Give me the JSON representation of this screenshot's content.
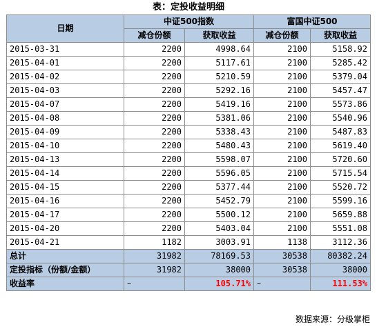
{
  "title": "表：定投收益明细",
  "header": {
    "date_label": "日期",
    "fund_a": "中证500指数",
    "fund_b": "富国中证500",
    "reduce_label": "减仓份额",
    "gain_label": "获取收益"
  },
  "rows": [
    {
      "date": "2015-03-31",
      "a_reduce": "2200",
      "a_gain": "4998.64",
      "b_reduce": "2100",
      "b_gain": "5158.92"
    },
    {
      "date": "2015-04-01",
      "a_reduce": "2200",
      "a_gain": "5117.61",
      "b_reduce": "2100",
      "b_gain": "5285.42"
    },
    {
      "date": "2015-04-02",
      "a_reduce": "2200",
      "a_gain": "5210.59",
      "b_reduce": "2100",
      "b_gain": "5379.04"
    },
    {
      "date": "2015-04-03",
      "a_reduce": "2200",
      "a_gain": "5292.16",
      "b_reduce": "2100",
      "b_gain": "5457.47"
    },
    {
      "date": "2015-04-07",
      "a_reduce": "2200",
      "a_gain": "5419.16",
      "b_reduce": "2100",
      "b_gain": "5573.86"
    },
    {
      "date": "2015-04-08",
      "a_reduce": "2200",
      "a_gain": "5381.06",
      "b_reduce": "2100",
      "b_gain": "5540.96"
    },
    {
      "date": "2015-04-09",
      "a_reduce": "2200",
      "a_gain": "5338.43",
      "b_reduce": "2100",
      "b_gain": "5487.83"
    },
    {
      "date": "2015-04-10",
      "a_reduce": "2200",
      "a_gain": "5480.43",
      "b_reduce": "2100",
      "b_gain": "5619.40"
    },
    {
      "date": "2015-04-13",
      "a_reduce": "2200",
      "a_gain": "5598.07",
      "b_reduce": "2100",
      "b_gain": "5720.60"
    },
    {
      "date": "2015-04-14",
      "a_reduce": "2200",
      "a_gain": "5596.05",
      "b_reduce": "2100",
      "b_gain": "5715.54"
    },
    {
      "date": "2015-04-15",
      "a_reduce": "2200",
      "a_gain": "5377.44",
      "b_reduce": "2100",
      "b_gain": "5520.72"
    },
    {
      "date": "2015-04-16",
      "a_reduce": "2200",
      "a_gain": "5452.79",
      "b_reduce": "2100",
      "b_gain": "5599.16"
    },
    {
      "date": "2015-04-17",
      "a_reduce": "2200",
      "a_gain": "5500.12",
      "b_reduce": "2100",
      "b_gain": "5659.88"
    },
    {
      "date": "2015-04-20",
      "a_reduce": "2200",
      "a_gain": "5403.04",
      "b_reduce": "2100",
      "b_gain": "5551.08"
    },
    {
      "date": "2015-04-21",
      "a_reduce": "1182",
      "a_gain": "3003.91",
      "b_reduce": "1138",
      "b_gain": "3112.36"
    }
  ],
  "total": {
    "label": "总计",
    "a_reduce": "31982",
    "a_gain": "78169.53",
    "b_reduce": "30538",
    "b_gain": "80382.24"
  },
  "indicator": {
    "label": "定投指标（份额/金额）",
    "a_reduce": "31982",
    "a_gain": "38000",
    "b_reduce": "30538",
    "b_gain": "38000"
  },
  "rate": {
    "label": "收益率",
    "a_reduce": "–",
    "a_gain": "105.71%",
    "b_reduce": "–",
    "b_gain": "111.53%"
  },
  "source": "数据来源：分级掌柜",
  "colors": {
    "header_bg": "#b8cce4",
    "highlight": "#ff0000"
  }
}
